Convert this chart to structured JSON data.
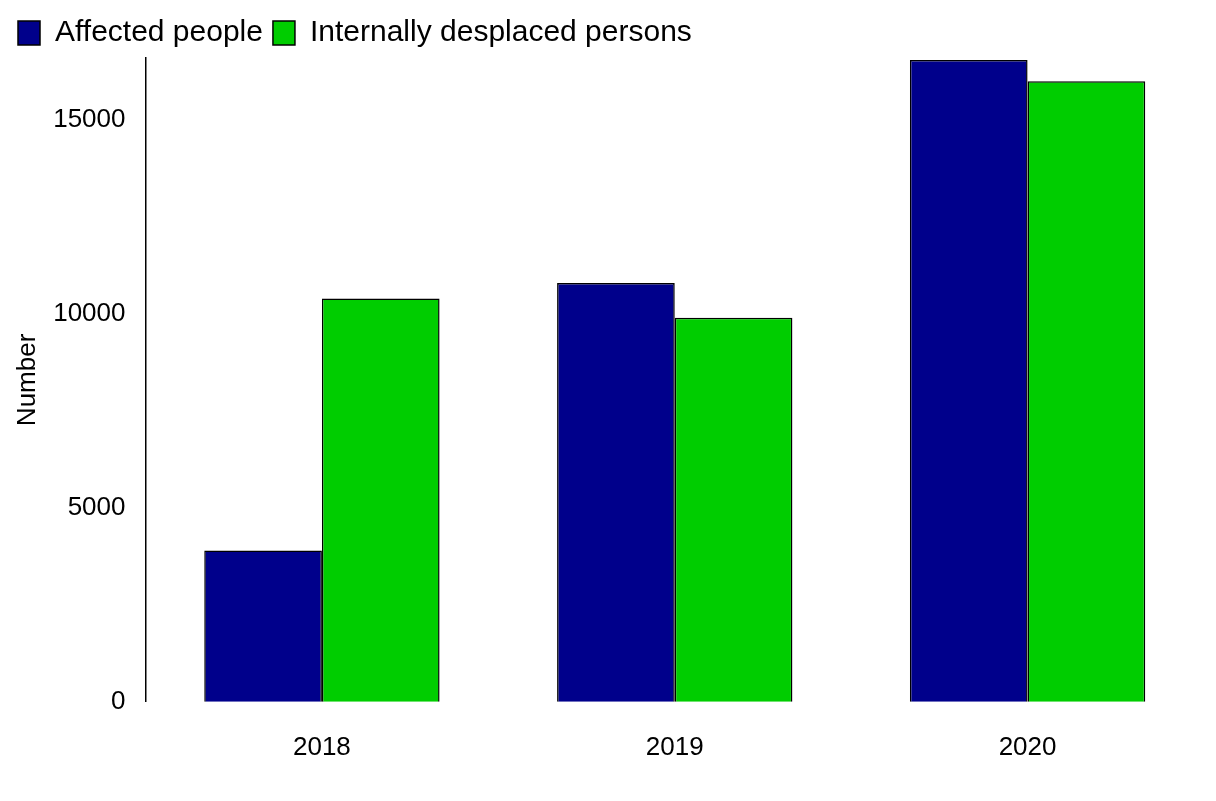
{
  "chart_data": {
    "type": "bar",
    "ylabel": "Number",
    "categories": [
      "2018",
      "2019",
      "2020"
    ],
    "series": [
      {
        "name": "Affected people",
        "color": "#00008b",
        "values": [
          3900,
          10800,
          16550
        ]
      },
      {
        "name": "Internally desplaced persons",
        "color": "#00cd00",
        "values": [
          10400,
          9900,
          16000
        ]
      }
    ],
    "ylim": [
      0,
      16600
    ],
    "yticks": [
      0,
      5000,
      10000,
      15000
    ],
    "grid": false,
    "legend": "top left"
  }
}
